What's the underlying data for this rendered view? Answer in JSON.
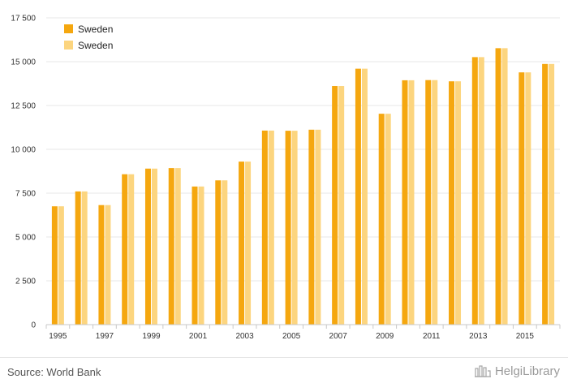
{
  "chart_data": {
    "type": "bar",
    "title": "",
    "xlabel": "",
    "ylabel": "",
    "ylim": [
      0,
      17500
    ],
    "yticks": [
      0,
      2500,
      5000,
      7500,
      10000,
      12500,
      15000,
      17500
    ],
    "ytick_labels": [
      "0",
      "2 500",
      "5 000",
      "7 500",
      "10 000",
      "12 500",
      "15 000",
      "17 500"
    ],
    "categories": [
      "1995",
      "1996",
      "1997",
      "1998",
      "1999",
      "2000",
      "2001",
      "2002",
      "2003",
      "2004",
      "2005",
      "2006",
      "2007",
      "2008",
      "2009",
      "2010",
      "2011",
      "2012",
      "2013",
      "2014",
      "2015",
      "2016"
    ],
    "xtick_labels": [
      "1995",
      "1997",
      "1999",
      "2001",
      "2003",
      "2005",
      "2007",
      "2009",
      "2011",
      "2013",
      "2015"
    ],
    "grid": true,
    "legend_position": "top-left",
    "series": [
      {
        "name": "Sweden",
        "color": "#f5a70f",
        "values": [
          6750,
          7600,
          6820,
          8580,
          8900,
          8930,
          7880,
          8230,
          9300,
          11070,
          11060,
          11120,
          13610,
          14600,
          12030,
          13940,
          13950,
          13880,
          15260,
          15770,
          14390,
          14870
        ]
      },
      {
        "name": "Sweden",
        "color": "#fcd57f",
        "values": [
          6750,
          7600,
          6820,
          8580,
          8900,
          8930,
          7880,
          8230,
          9300,
          11070,
          11060,
          11120,
          13610,
          14600,
          12030,
          13940,
          13950,
          13880,
          15260,
          15770,
          14390,
          14870
        ]
      }
    ]
  },
  "footer": {
    "source": "Source: World Bank",
    "brand": "HelgiLibrary"
  },
  "icons": {
    "brand_logo": "helgilibrary-logo-icon"
  }
}
